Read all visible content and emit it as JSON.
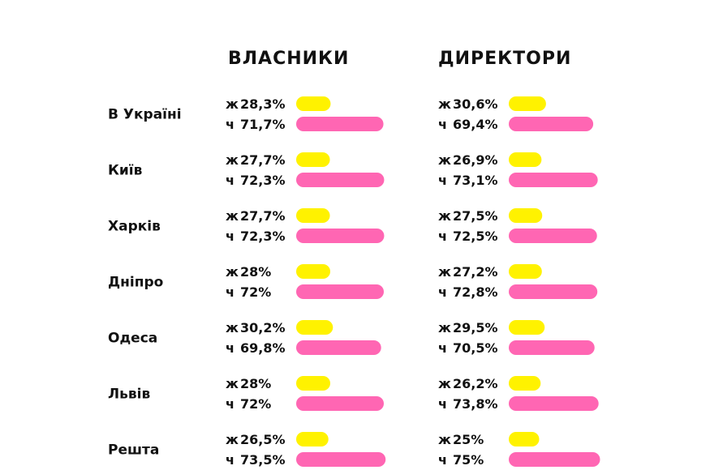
{
  "chart_data": {
    "type": "bar",
    "columns": [
      {
        "title": "ВЛАСНИКИ"
      },
      {
        "title": "ДИРЕКТОРИ"
      }
    ],
    "categories": [
      "В Україні",
      "Київ",
      "Харків",
      "Дніпро",
      "Одеса",
      "Львів",
      "Решта"
    ],
    "series": [
      {
        "key": "ж",
        "color": "#FFF200",
        "owners": [
          {
            "value": 28.3,
            "label": "28,3%"
          },
          {
            "value": 27.7,
            "label": "27,7%"
          },
          {
            "value": 27.7,
            "label": "27,7%"
          },
          {
            "value": 28,
            "label": "28%"
          },
          {
            "value": 30.2,
            "label": "30,2%"
          },
          {
            "value": 28,
            "label": "28%"
          },
          {
            "value": 26.5,
            "label": "26,5%"
          }
        ],
        "directors": [
          {
            "value": 30.6,
            "label": "30,6%"
          },
          {
            "value": 26.9,
            "label": "26,9%"
          },
          {
            "value": 27.5,
            "label": "27,5%"
          },
          {
            "value": 27.2,
            "label": "27,2%"
          },
          {
            "value": 29.5,
            "label": "29,5%"
          },
          {
            "value": 26.2,
            "label": "26,2%"
          },
          {
            "value": 25,
            "label": "25%"
          }
        ]
      },
      {
        "key": "ч",
        "color": "#FF66B3",
        "owners": [
          {
            "value": 71.7,
            "label": "71,7%"
          },
          {
            "value": 72.3,
            "label": "72,3%"
          },
          {
            "value": 72.3,
            "label": "72,3%"
          },
          {
            "value": 72,
            "label": "72%"
          },
          {
            "value": 69.8,
            "label": "69,8%"
          },
          {
            "value": 72,
            "label": "72%"
          },
          {
            "value": 73.5,
            "label": "73,5%"
          }
        ],
        "directors": [
          {
            "value": 69.4,
            "label": "69,4%"
          },
          {
            "value": 73.1,
            "label": "73,1%"
          },
          {
            "value": 72.5,
            "label": "72,5%"
          },
          {
            "value": 72.8,
            "label": "72,8%"
          },
          {
            "value": 70.5,
            "label": "70,5%"
          },
          {
            "value": 73.8,
            "label": "73,8%"
          },
          {
            "value": 75,
            "label": "75%"
          }
        ]
      }
    ]
  }
}
